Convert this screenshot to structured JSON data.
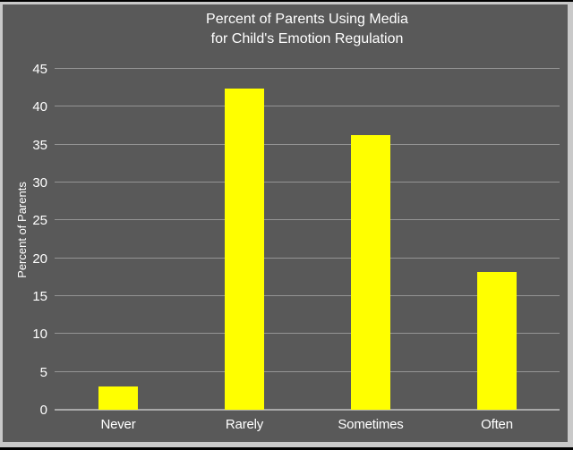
{
  "chart_data": {
    "type": "bar",
    "title": "Percent of Parents Using Media for Child's Emotion Regulation",
    "title_lines": [
      "Percent of Parents Using Media",
      "for Child's Emotion Regulation"
    ],
    "categories": [
      "Never",
      "Rarely",
      "Sometimes",
      "Often"
    ],
    "values": [
      3.1,
      42.4,
      36.3,
      18.2
    ],
    "xlabel": "",
    "ylabel": "Percent of Parents",
    "ylim": [
      0,
      45
    ],
    "ytick_step": 5,
    "grid": "horizontal-major",
    "legend": "none",
    "colors": {
      "bar": "#ffff00",
      "plot_background": "#595959",
      "gridline": "#949494",
      "axis_line": "#a8a8a8",
      "text": "#ffffff",
      "frame_border": "#c9c9c9",
      "frame_edge": "#000000"
    }
  }
}
